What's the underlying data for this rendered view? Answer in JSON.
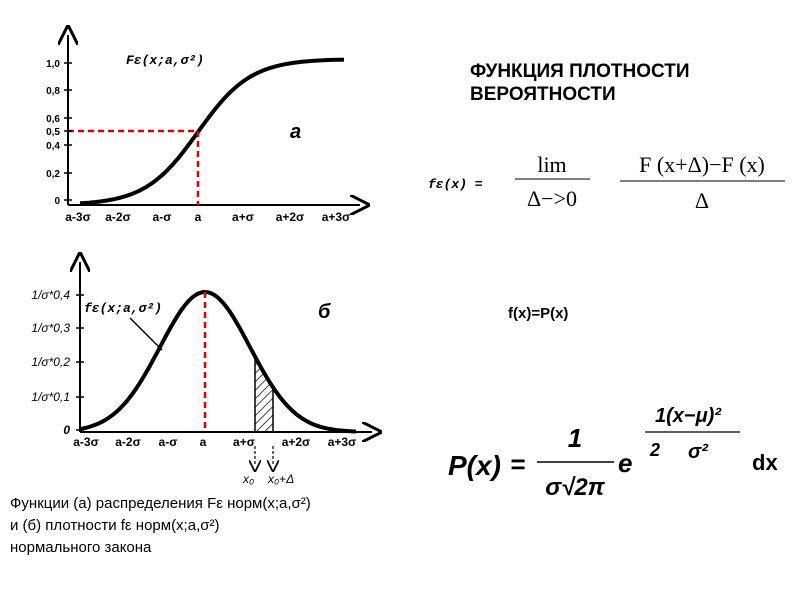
{
  "top_chart": {
    "y_labels": [
      "1,0",
      "0,8",
      "0,6",
      "0,5",
      "0,4",
      "0,2",
      "0"
    ],
    "x_labels": [
      "a-3σ",
      "a-2σ",
      "a-σ",
      "a",
      "a+σ",
      "a+2σ",
      "a+3σ"
    ],
    "curve_label": "Fε(x;a,σ²)",
    "panel": "а"
  },
  "title": "ФУНКЦИЯ ПЛОТНОСТИ ВЕРОЯТНОСТИ",
  "density_formula": {
    "lhs": "fε(x) =",
    "lim": "lim",
    "lim_sub": "Δ−>0",
    "numerator": "F (x+Δ)−F (x)",
    "denominator": "Δ"
  },
  "bottom_chart": {
    "y_labels": [
      "1/σ*0,4",
      "1/σ*0,3",
      "1/σ*0,2",
      "1/σ*0,1",
      "0"
    ],
    "x_labels": [
      "a-3σ",
      "a-2σ",
      "a-σ",
      "a",
      "a+σ",
      "a+2σ",
      "a+3σ"
    ],
    "curve_label": "fε(x;a,σ²)",
    "panel": "б",
    "x0": "x₀",
    "x0_delta": "x₀+Δ"
  },
  "equality": "f(x)=P(x)",
  "probability_formula": {
    "lhs": "P(x)",
    "eq": "=",
    "numerator": "1",
    "denominator": "σ√2π",
    "base": "e",
    "exp_numerator": "1(x−μ)²",
    "exp_two": "2",
    "exp_denominator": "σ²",
    "dx": "dx"
  },
  "caption": [
    "Функции  (а) распределения  Fε норм(x;a,σ²)",
    "и (б) плотности  fε норм(x;a,σ²)",
    "нормального  закона"
  ]
}
